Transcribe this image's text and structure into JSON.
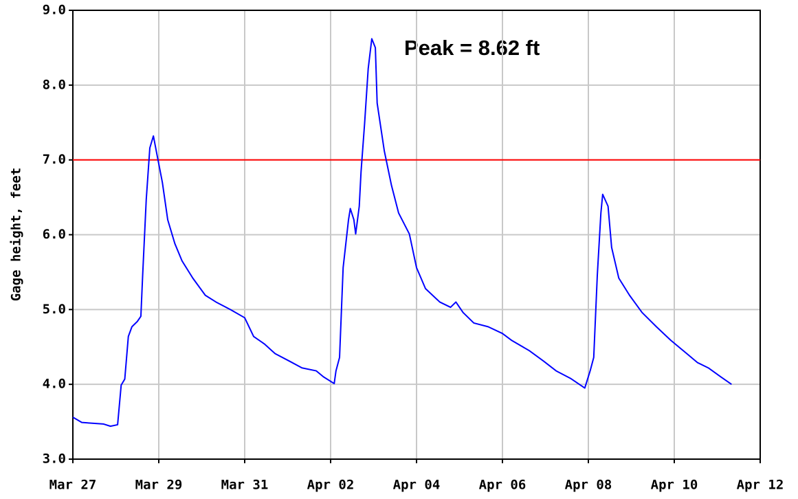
{
  "chart_data": {
    "type": "line",
    "y_label": "Gage height, feet",
    "annotation": "Peak = 8.62 ft",
    "color": "#0000ff",
    "hline": 7.0,
    "hline_color": "#ff0000",
    "grid": true,
    "xlim": [
      "03-27 00:00",
      "04-12 00:00"
    ],
    "xticks": [
      {
        "value": "03-27 00:00",
        "label": "Mar 27"
      },
      {
        "value": "03-29 00:00",
        "label": "Mar 29"
      },
      {
        "value": "03-31 00:00",
        "label": "Mar 31"
      },
      {
        "value": "04-02 00:00",
        "label": "Apr 02"
      },
      {
        "value": "04-04 00:00",
        "label": "Apr 04"
      },
      {
        "value": "04-06 00:00",
        "label": "Apr 06"
      },
      {
        "value": "04-08 00:00",
        "label": "Apr 08"
      },
      {
        "value": "04-10 00:00",
        "label": "Apr 10"
      },
      {
        "value": "04-12 00:00",
        "label": "Apr 12"
      }
    ],
    "ylim": [
      3.0,
      9.0
    ],
    "yticks": [
      {
        "value": 3,
        "label": "3.0"
      },
      {
        "value": 4,
        "label": "4.0"
      },
      {
        "value": 5,
        "label": "5.0"
      },
      {
        "value": 6,
        "label": "6.0"
      },
      {
        "value": 7,
        "label": "7.0"
      },
      {
        "value": 8,
        "label": "8.0"
      },
      {
        "value": 9,
        "label": "9.0"
      }
    ],
    "x": [
      "03-27 00:00",
      "03-27 05:00",
      "03-27 17:00",
      "03-27 21:00",
      "03-28 01:00",
      "03-28 03:00",
      "03-28 05:00",
      "03-28 07:00",
      "03-28 09:00",
      "03-28 12:00",
      "03-28 14:00",
      "03-28 15:00",
      "03-28 17:00",
      "03-28 19:00",
      "03-28 21:00",
      "03-28 23:00",
      "03-29 02:00",
      "03-29 05:00",
      "03-29 09:00",
      "03-29 13:00",
      "03-29 19:00",
      "03-30 02:00",
      "03-30 08:00",
      "03-30 16:00",
      "03-31 00:00",
      "03-31 05:00",
      "03-31 11:00",
      "03-31 17:00",
      "04-01 01:00",
      "04-01 08:00",
      "04-01 16:00",
      "04-01 20:00",
      "04-02 02:00",
      "04-02 03:00",
      "04-02 05:00",
      "04-02 07:00",
      "04-02 10:00",
      "04-02 11:00",
      "04-02 13:00",
      "04-02 14:00",
      "04-02 16:00",
      "04-02 17:00",
      "04-02 19:00",
      "04-02 21:00",
      "04-02 23:00",
      "04-03 01:00",
      "04-03 02:00",
      "04-03 06:00",
      "04-03 10:00",
      "04-03 14:00",
      "04-03 20:00",
      "04-04 00:00",
      "04-04 05:00",
      "04-04 13:00",
      "04-04 19:00",
      "04-04 22:00",
      "04-05 02:00",
      "04-05 08:00",
      "04-05 16:00",
      "04-06 00:00",
      "04-06 05:00",
      "04-06 15:00",
      "04-06 23:00",
      "04-07 06:00",
      "04-07 14:00",
      "04-07 22:00",
      "04-08 01:00",
      "04-08 03:00",
      "04-08 05:00",
      "04-08 07:00",
      "04-08 08:00",
      "04-08 11:00",
      "04-08 13:00",
      "04-08 17:00",
      "04-08 23:00",
      "04-09 06:00",
      "04-09 14:00",
      "04-09 22:00",
      "04-10 07:00",
      "04-10 13:00",
      "04-10 19:00",
      "04-11 02:00",
      "04-11 08:00"
    ],
    "values": [
      3.56,
      3.49,
      3.47,
      3.44,
      3.46,
      3.99,
      4.07,
      4.64,
      4.77,
      4.84,
      4.91,
      5.46,
      6.47,
      7.16,
      7.32,
      7.07,
      6.7,
      6.2,
      5.88,
      5.65,
      5.42,
      5.19,
      5.1,
      5.0,
      4.89,
      4.64,
      4.54,
      4.41,
      4.31,
      4.22,
      4.18,
      4.1,
      4.01,
      4.18,
      4.36,
      5.56,
      6.2,
      6.35,
      6.2,
      6.01,
      6.38,
      6.84,
      7.49,
      8.22,
      8.62,
      8.5,
      7.76,
      7.12,
      6.66,
      6.29,
      6.01,
      5.56,
      5.28,
      5.1,
      5.03,
      5.1,
      4.96,
      4.82,
      4.77,
      4.68,
      4.59,
      4.45,
      4.31,
      4.18,
      4.08,
      3.95,
      4.18,
      4.36,
      5.46,
      6.29,
      6.54,
      6.38,
      5.83,
      5.42,
      5.19,
      4.96,
      4.77,
      4.59,
      4.41,
      4.29,
      4.22,
      4.1,
      4.0
    ]
  }
}
